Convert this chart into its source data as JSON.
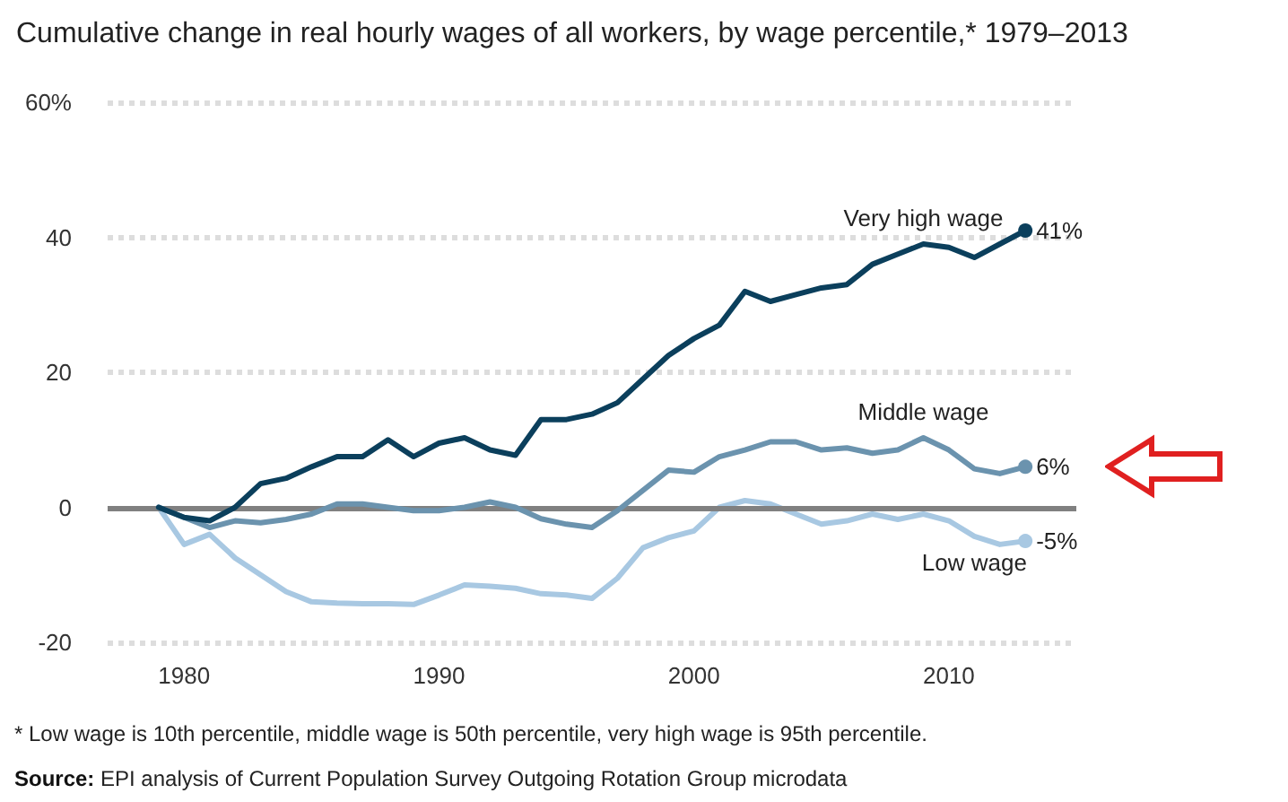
{
  "chart_data": {
    "type": "line",
    "title": "Cumulative change in real hourly wages of all workers, by wage percentile,* 1979–2013",
    "x": [
      1979,
      1980,
      1981,
      1982,
      1983,
      1984,
      1985,
      1986,
      1987,
      1988,
      1989,
      1990,
      1991,
      1992,
      1993,
      1994,
      1995,
      1996,
      1997,
      1998,
      1999,
      2000,
      2001,
      2002,
      2003,
      2004,
      2005,
      2006,
      2007,
      2008,
      2009,
      2010,
      2011,
      2012,
      2013
    ],
    "series": [
      {
        "name": "Very high wage",
        "color": "#0b3f5c",
        "values": [
          0,
          -1.5,
          -2,
          0,
          3.5,
          4.3,
          6,
          7.5,
          7.5,
          10,
          7.5,
          9.5,
          10.3,
          8.5,
          7.7,
          13,
          13,
          13.8,
          15.5,
          19,
          22.5,
          25,
          27,
          32,
          30.5,
          31.5,
          32.5,
          33,
          36,
          37.5,
          39,
          38.5,
          37,
          39,
          41
        ],
        "value_labels": [
          null,
          null,
          null,
          null,
          null,
          null,
          null,
          null,
          null,
          null,
          null,
          null,
          null,
          null,
          null,
          null,
          null,
          null,
          null,
          null,
          null,
          null,
          null,
          null,
          null,
          null,
          null,
          null,
          null,
          null,
          null,
          null,
          null,
          null,
          "41%"
        ]
      },
      {
        "name": "Middle wage",
        "color": "#6b93ae",
        "values": [
          0,
          -1.5,
          -3,
          -2,
          -2.3,
          -1.8,
          -1,
          0.5,
          0.5,
          0,
          -0.5,
          -0.5,
          0,
          0.8,
          0,
          -1.7,
          -2.5,
          -3,
          -0.5,
          2.5,
          5.5,
          5.2,
          7.5,
          8.5,
          9.7,
          9.7,
          8.5,
          8.8,
          8,
          8.5,
          10.3,
          8.5,
          5.7,
          5,
          6
        ],
        "value_labels": [
          null,
          null,
          null,
          null,
          null,
          null,
          null,
          null,
          null,
          null,
          null,
          null,
          null,
          null,
          null,
          null,
          null,
          null,
          null,
          null,
          null,
          null,
          null,
          null,
          null,
          null,
          null,
          null,
          null,
          null,
          null,
          null,
          null,
          null,
          "6%"
        ]
      },
      {
        "name": "Low wage",
        "color": "#a8c8e2",
        "values": [
          0,
          -5.5,
          -4,
          -7.5,
          -10,
          -12.5,
          -14,
          -14.2,
          -14.3,
          -14.3,
          -14.4,
          -13,
          -11.5,
          -11.7,
          -12,
          -12.8,
          -13,
          -13.5,
          -10.5,
          -6,
          -4.5,
          -3.5,
          0,
          1,
          0.5,
          -1,
          -2.5,
          -2,
          -1,
          -1.8,
          -1,
          -2,
          -4.3,
          -5.5,
          -5
        ],
        "value_labels": [
          null,
          null,
          null,
          null,
          null,
          null,
          null,
          null,
          null,
          null,
          null,
          null,
          null,
          null,
          null,
          null,
          null,
          null,
          null,
          null,
          null,
          null,
          null,
          null,
          null,
          null,
          null,
          null,
          null,
          null,
          null,
          null,
          null,
          null,
          "-5%"
        ]
      }
    ],
    "xlim": [
      1977,
      2015
    ],
    "xticks": [
      1980,
      1990,
      2000,
      2010
    ],
    "ylim": [
      -20,
      60
    ],
    "yticks": [
      -20,
      0,
      20,
      40,
      {
        "value": 60,
        "label": "60%"
      }
    ],
    "grid": "y",
    "legend": false,
    "line_style": "solid",
    "ref_lines": [
      {
        "axis": "y",
        "value": 0,
        "color": "#808080"
      }
    ],
    "annotations": [
      "* Low wage is 10th percentile, middle wage is 50th percentile, very high wage is 95th percentile.",
      "Source: EPI analysis of Current Population Survey Outgoing Rotation Group microdata"
    ]
  }
}
